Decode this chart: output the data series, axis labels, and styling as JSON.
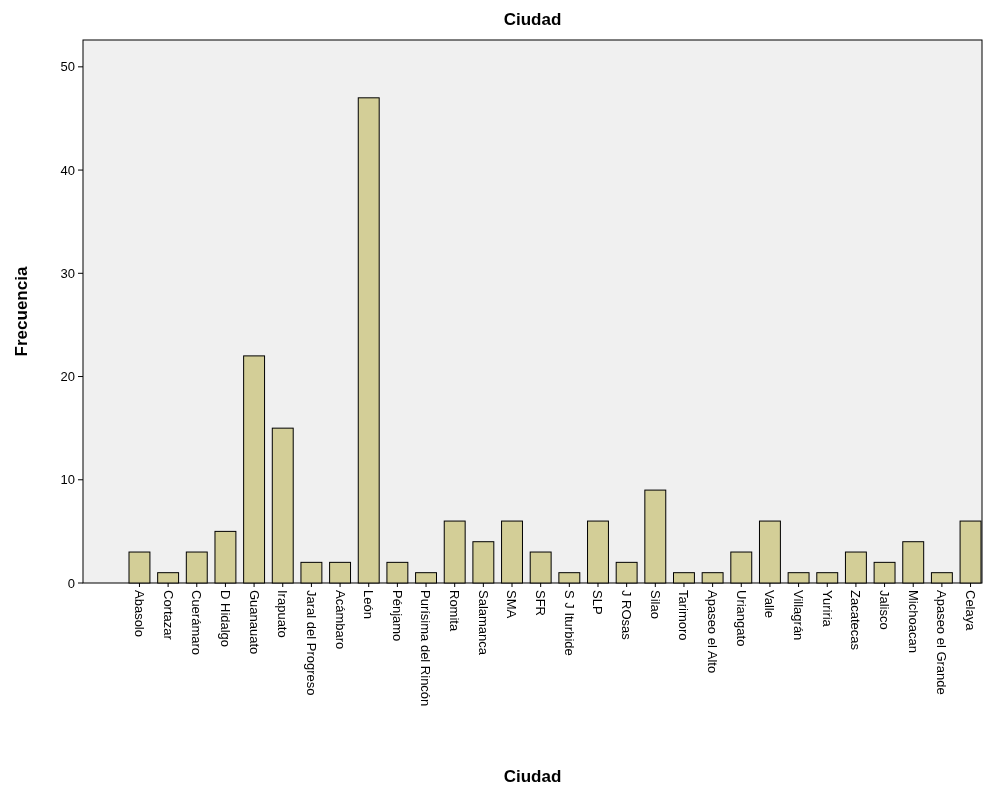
{
  "chart_data": {
    "type": "bar",
    "title": "Ciudad",
    "xlabel": "Ciudad",
    "ylabel": "Frecuencia",
    "categories": [
      "Abasolo",
      "Cortazar",
      "Cuerámaro",
      "D Hidalgo",
      "Guanauato",
      "Irapuato",
      "Jaral del Progreso",
      "Acámbaro",
      "León",
      "Pénjamo",
      "Purísima del Rincón",
      "Romita",
      "Salamanca",
      "SMA",
      "SFR",
      "S J Iturbide",
      "SLP",
      "J ROsas",
      "Silao",
      "Tarimoro",
      "Apaseo el Alto",
      "Uriangato",
      "Valle",
      "Villagrán",
      "Yuriria",
      "Zacatecas",
      "Jalisco",
      "Michoacan",
      "Apaseo el Grande",
      "Celaya"
    ],
    "values": [
      3,
      1,
      3,
      5,
      22,
      15,
      2,
      2,
      47,
      2,
      1,
      6,
      4,
      6,
      3,
      1,
      6,
      2,
      9,
      1,
      1,
      3,
      6,
      1,
      1,
      3,
      2,
      4,
      1,
      6
    ],
    "color": "#d3ce97",
    "ylim": [
      0,
      52.6
    ],
    "yticks": [
      0,
      10,
      20,
      30,
      40,
      50
    ],
    "grid": false
  }
}
